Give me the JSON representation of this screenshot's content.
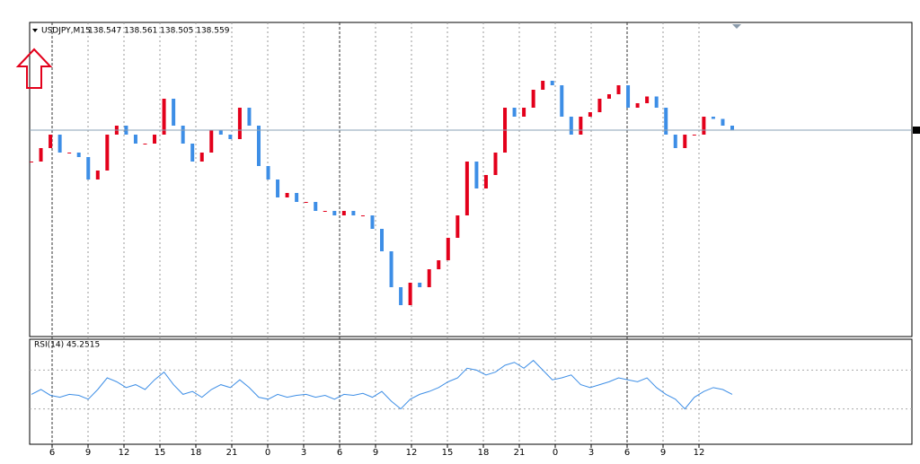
{
  "header": {
    "symbol": "USDJPY,M15",
    "ohlc": "138.547 138.561 138.505 138.559"
  },
  "chart_data": {
    "type": "candlestick",
    "x_labels": [
      "6",
      "9",
      "12",
      "15",
      "18",
      "21",
      "0",
      "3",
      "6",
      "9",
      "12",
      "15",
      "18",
      "21",
      "0",
      "3",
      "6",
      "9",
      "12"
    ],
    "close": [
      138.28,
      138.4,
      138.52,
      138.36,
      138.36,
      138.32,
      138.12,
      138.2,
      138.52,
      138.6,
      138.52,
      138.44,
      138.44,
      138.52,
      138.84,
      138.6,
      138.44,
      138.28,
      138.36,
      138.56,
      138.52,
      138.48,
      138.76,
      138.6,
      138.24,
      138.12,
      137.96,
      138.0,
      137.92,
      137.92,
      137.84,
      137.84,
      137.8,
      137.84,
      137.8,
      137.8,
      137.68,
      137.48,
      137.16,
      137.0,
      137.2,
      137.16,
      137.32,
      137.4,
      137.6,
      137.8,
      138.28,
      138.04,
      138.16,
      138.36,
      138.76,
      138.68,
      138.76,
      138.92,
      139.0,
      138.96,
      138.68,
      138.52,
      138.68,
      138.72,
      138.84,
      138.88,
      138.96,
      138.76,
      138.8,
      138.86,
      138.76,
      138.52,
      138.4,
      138.52,
      138.52,
      138.68,
      138.66,
      138.6,
      138.56
    ],
    "ylim": [
      136.72,
      139.52
    ],
    "up_color": "#e3001b",
    "down_color": "#3d8ee6",
    "rsi": {
      "label": "RSI(14) 45.2515",
      "color": "#3d8ee6",
      "values": [
        45,
        50,
        44,
        42,
        45,
        44,
        40,
        50,
        62,
        58,
        52,
        55,
        50,
        60,
        68,
        55,
        45,
        48,
        42,
        50,
        55,
        52,
        60,
        52,
        42,
        40,
        45,
        42,
        44,
        45,
        42,
        44,
        40,
        45,
        44,
        46,
        42,
        48,
        38,
        30,
        40,
        45,
        48,
        52,
        58,
        62,
        72,
        70,
        65,
        68,
        75,
        78,
        72,
        80,
        70,
        60,
        62,
        65,
        55,
        52,
        55,
        58,
        62,
        60,
        58,
        62,
        52,
        45,
        40,
        30,
        42,
        48,
        52,
        50,
        45
      ],
      "ylim": [
        0,
        100
      ],
      "levels": [
        30,
        70
      ]
    }
  }
}
